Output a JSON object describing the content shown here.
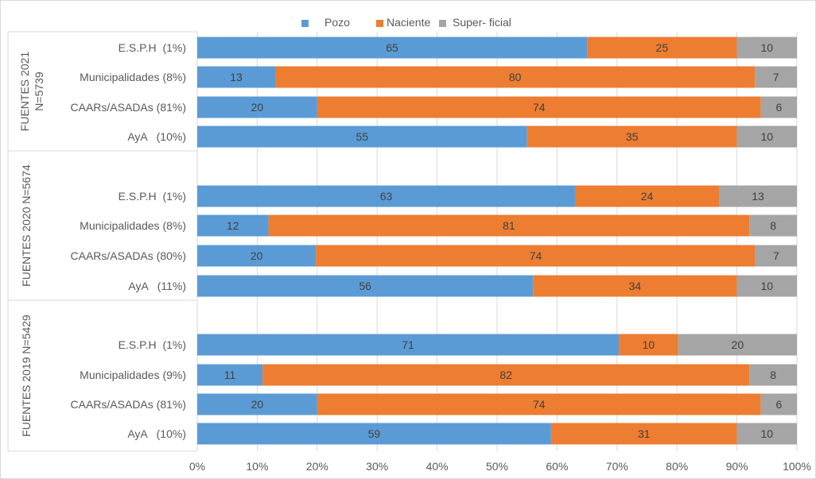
{
  "chart_data": {
    "type": "bar",
    "orientation": "horizontal",
    "stacked": "percent",
    "title": "",
    "xlabel": "",
    "ylabel": "",
    "xlim": [
      0,
      100
    ],
    "x_ticks": [
      "0%",
      "10%",
      "20%",
      "30%",
      "40%",
      "50%",
      "60%",
      "70%",
      "80%",
      "90%",
      "100%"
    ],
    "grid": "vertical",
    "legend": {
      "placement": "top",
      "entries": [
        {
          "name": "Pozo",
          "color": "#5b9bd5"
        },
        {
          "name": "Naciente",
          "color": "#ed7d31"
        },
        {
          "name": "Super- ficial",
          "color": "#a5a5a5"
        }
      ]
    },
    "groups": [
      {
        "label_line1": "FUENTES 2021",
        "label_line2": "N=5739",
        "bars": [
          {
            "category": "E.S.P.H  (1%)",
            "values": [
              65,
              25,
              10
            ]
          },
          {
            "category": "Municipalidades (8%)",
            "values": [
              13,
              80,
              7
            ]
          },
          {
            "category": "CAARs/ASADAs (81%)",
            "values": [
              20,
              74,
              6
            ]
          },
          {
            "category": "AyA   (10%)",
            "values": [
              55,
              35,
              10
            ]
          }
        ]
      },
      {
        "label_line1": "FUENTES 2020 N=5674",
        "label_line2": "",
        "bars": [
          {
            "category": "E.S.P.H  (1%)",
            "values": [
              63,
              24,
              13
            ]
          },
          {
            "category": "Municipalidades (8%)",
            "values": [
              12,
              81,
              8
            ]
          },
          {
            "category": "CAARs/ASADAs (80%)",
            "values": [
              20,
              74,
              7
            ]
          },
          {
            "category": "AyA   (11%)",
            "values": [
              56,
              34,
              10
            ]
          }
        ]
      },
      {
        "label_line1": "FUENTES 2019 N=5429",
        "label_line2": "",
        "bars": [
          {
            "category": "E.S.P.H  (1%)",
            "values": [
              71,
              10,
              20
            ]
          },
          {
            "category": "Municipalidades (9%)",
            "values": [
              11,
              82,
              8
            ]
          },
          {
            "category": "CAARs/ASADAs (81%)",
            "values": [
              20,
              74,
              6
            ]
          },
          {
            "category": "AyA   (10%)",
            "values": [
              59,
              31,
              10
            ]
          }
        ]
      }
    ]
  }
}
